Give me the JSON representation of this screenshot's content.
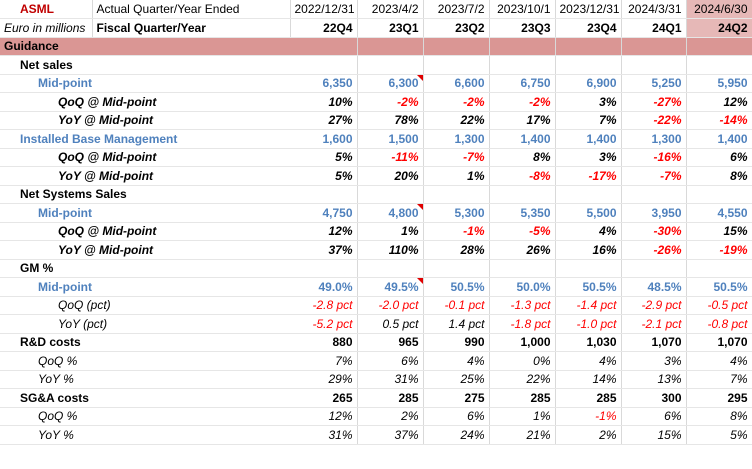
{
  "header": {
    "company": "ASML",
    "row1_label": "Actual Quarter/Year Ended",
    "row2_label": "Euro in millions",
    "row2_label2": "Fiscal Quarter/Year",
    "dates": [
      "2022/12/31",
      "2023/4/2",
      "2023/7/2",
      "2023/10/1",
      "2023/12/31",
      "2024/3/31",
      "2024/6/30"
    ],
    "quarters": [
      "22Q4",
      "23Q1",
      "23Q2",
      "23Q3",
      "23Q4",
      "24Q1",
      "24Q2"
    ]
  },
  "section": "Guidance",
  "rows": [
    {
      "label": "Net sales",
      "style": "group",
      "values": []
    },
    {
      "label": "Mid-point",
      "style": "mid",
      "values": [
        "6,350",
        "6,300",
        "6,600",
        "6,750",
        "6,900",
        "5,250",
        "5,950"
      ],
      "flag": 1
    },
    {
      "label": "QoQ @ Mid-point",
      "style": "pct-bold",
      "values": [
        "10%",
        "-2%",
        "-2%",
        "-2%",
        "3%",
        "-27%",
        "12%"
      ]
    },
    {
      "label": "YoY @ Mid-point",
      "style": "pct-bold",
      "values": [
        "27%",
        "78%",
        "22%",
        "17%",
        "7%",
        "-22%",
        "-14%"
      ]
    },
    {
      "label": "Installed Base Management",
      "style": "ibm",
      "values": [
        "1,600",
        "1,500",
        "1,300",
        "1,400",
        "1,400",
        "1,300",
        "1,400"
      ]
    },
    {
      "label": "QoQ @ Mid-point",
      "style": "pct-bold",
      "values": [
        "5%",
        "-11%",
        "-7%",
        "8%",
        "3%",
        "-16%",
        "6%"
      ]
    },
    {
      "label": "YoY @ Mid-point",
      "style": "pct-bold",
      "values": [
        "5%",
        "20%",
        "1%",
        "-8%",
        "-17%",
        "-7%",
        "8%"
      ]
    },
    {
      "label": "Net Systems Sales",
      "style": "group",
      "values": []
    },
    {
      "label": "Mid-point",
      "style": "mid",
      "values": [
        "4,750",
        "4,800",
        "5,300",
        "5,350",
        "5,500",
        "3,950",
        "4,550"
      ],
      "flag": 1
    },
    {
      "label": "QoQ @ Mid-point",
      "style": "pct-bold",
      "values": [
        "12%",
        "1%",
        "-1%",
        "-5%",
        "4%",
        "-30%",
        "15%"
      ]
    },
    {
      "label": "YoY @ Mid-point",
      "style": "pct-bold",
      "values": [
        "37%",
        "110%",
        "28%",
        "26%",
        "16%",
        "-26%",
        "-19%"
      ]
    },
    {
      "label": "GM %",
      "style": "group",
      "values": []
    },
    {
      "label": "Mid-point",
      "style": "mid",
      "values": [
        "49.0%",
        "49.5%",
        "50.5%",
        "50.0%",
        "50.5%",
        "48.5%",
        "50.5%"
      ],
      "flag": 1
    },
    {
      "label": "QoQ (pct)",
      "style": "pct-ital",
      "values": [
        "-2.8 pct",
        "-2.0 pct",
        "-0.1 pct",
        "-1.3 pct",
        "-1.4 pct",
        "-2.9 pct",
        "-0.5 pct"
      ]
    },
    {
      "label": "YoY (pct)",
      "style": "pct-ital",
      "values": [
        "-5.2 pct",
        "0.5 pct",
        "1.4 pct",
        "-1.8 pct",
        "-1.0 pct",
        "-2.1 pct",
        "-0.8 pct"
      ]
    },
    {
      "label": "R&D costs",
      "style": "cost",
      "values": [
        "880",
        "965",
        "990",
        "1,000",
        "1,030",
        "1,070",
        "1,070"
      ]
    },
    {
      "label": "QoQ %",
      "style": "pct-small",
      "values": [
        "7%",
        "6%",
        "4%",
        "0%",
        "4%",
        "3%",
        "4%"
      ]
    },
    {
      "label": "YoY %",
      "style": "pct-small",
      "values": [
        "29%",
        "31%",
        "25%",
        "22%",
        "14%",
        "13%",
        "7%"
      ]
    },
    {
      "label": "SG&A costs",
      "style": "cost",
      "values": [
        "265",
        "285",
        "275",
        "285",
        "285",
        "300",
        "295"
      ]
    },
    {
      "label": "QoQ %",
      "style": "pct-small",
      "values": [
        "12%",
        "2%",
        "6%",
        "1%",
        "-1%",
        "6%",
        "8%"
      ]
    },
    {
      "label": "YoY %",
      "style": "pct-small",
      "values": [
        "31%",
        "37%",
        "24%",
        "21%",
        "2%",
        "15%",
        "5%"
      ]
    }
  ],
  "colors": {
    "highlight_header": "#e6b8b7",
    "highlight_dark": "#da9694",
    "label_blue": "#4f81bd",
    "negative": "#ff0000",
    "company": "#c00000"
  }
}
